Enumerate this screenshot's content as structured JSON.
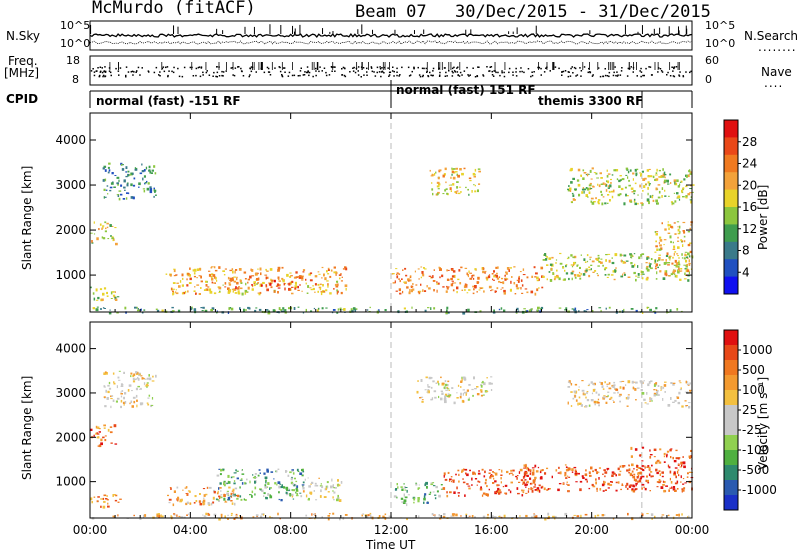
{
  "header": {
    "station": "McMurdo (fitACF)",
    "beam": "Beam 07",
    "date_range": "30/Dec/2015 - 31/Dec/2015"
  },
  "strips": {
    "nsky_label": "N.Sky",
    "nsky_ticks": [
      "10^5",
      "10^0"
    ],
    "nsearch_label": "N.Search",
    "nsearch_legend": "........",
    "nsearch_ticks": [
      "10^5",
      "10^0"
    ],
    "freq_label": "Freq.",
    "freq_unit": "[MHz]",
    "freq_ticks": [
      "18",
      "8"
    ],
    "nave_label": "Nave",
    "nave_legend": "....",
    "nave_ticks": [
      "60",
      "0"
    ]
  },
  "cpid": {
    "label": "CPID",
    "segments": [
      {
        "text": "normal (fast) -151 RF",
        "start": 0,
        "end": 12
      },
      {
        "text": "normal (fast) 151 RF",
        "start": 12,
        "end": 22
      },
      {
        "text": "themis 3300 RF",
        "start": 22,
        "end": 24
      }
    ]
  },
  "chart_data": [
    {
      "type": "heatmap",
      "panel": "power",
      "ylabel": "Slant Range [km]",
      "yticks": [
        "1000",
        "2000",
        "3000",
        "4000"
      ],
      "xticks": [
        "00:00",
        "04:00",
        "08:00",
        "12:00",
        "16:00",
        "20:00",
        "00:00"
      ],
      "xlabel": "Time UT",
      "x_range_hours": [
        0,
        24
      ],
      "y_range_km": [
        180,
        4600
      ],
      "colorbar_label": "Power [dB]",
      "colorbar_ticks": [
        "4",
        "8",
        "12",
        "16",
        "20",
        "24",
        "28"
      ],
      "colorbar_colors": [
        "#1010f0",
        "#2050c0",
        "#3a7a8a",
        "#3f9d4e",
        "#8cc63e",
        "#e8d32a",
        "#f3a23a",
        "#f07a20",
        "#ea4818",
        "#e01010"
      ],
      "backscatter_bands": [
        {
          "t0": 0.0,
          "t1": 24.0,
          "r0": 180,
          "r1": 300,
          "level": 0.35
        },
        {
          "t0": 0.0,
          "t1": 1.0,
          "r0": 1700,
          "r1": 2200,
          "level": 0.55
        },
        {
          "t0": 0.0,
          "t1": 1.2,
          "r0": 450,
          "r1": 750,
          "level": 0.5
        },
        {
          "t0": 0.5,
          "t1": 2.6,
          "r0": 2700,
          "r1": 3500,
          "level": 0.3
        },
        {
          "t0": 3.0,
          "t1": 10.2,
          "r0": 600,
          "r1": 1200,
          "level": 0.65
        },
        {
          "t0": 5.5,
          "t1": 8.5,
          "r0": 700,
          "r1": 1000,
          "level": 0.8
        },
        {
          "t0": 12.0,
          "t1": 18.0,
          "r0": 600,
          "r1": 1200,
          "level": 0.72
        },
        {
          "t0": 13.5,
          "t1": 15.5,
          "r0": 2800,
          "r1": 3400,
          "level": 0.55
        },
        {
          "t0": 18.0,
          "t1": 24.0,
          "r0": 900,
          "r1": 1500,
          "level": 0.5
        },
        {
          "t0": 19.0,
          "t1": 24.0,
          "r0": 2600,
          "r1": 3400,
          "level": 0.5
        },
        {
          "t0": 22.5,
          "t1": 24.0,
          "r0": 1000,
          "r1": 2200,
          "level": 0.6
        }
      ]
    },
    {
      "type": "heatmap",
      "panel": "velocity",
      "ylabel": "Slant Range [km]",
      "yticks": [
        "1000",
        "2000",
        "3000",
        "4000"
      ],
      "xticks": [
        "00:00",
        "04:00",
        "08:00",
        "12:00",
        "16:00",
        "20:00",
        "00:00"
      ],
      "xlabel": "Time UT",
      "x_range_hours": [
        0,
        24
      ],
      "y_range_km": [
        180,
        4600
      ],
      "colorbar_label": "Velocity [m s⁻¹]",
      "colorbar_ticks": [
        "1000",
        "500",
        "100",
        "25",
        "-25",
        "-100",
        "-500",
        "-1000"
      ],
      "colorbar_colors": [
        "#1a30c8",
        "#2a5ab0",
        "#2e8a6e",
        "#4fb040",
        "#90d050",
        "#c8c8c8",
        "#c8c8c8",
        "#f3c040",
        "#f39a30",
        "#f07820",
        "#e84818",
        "#e01010"
      ],
      "backscatter_bands": [
        {
          "t0": 0.0,
          "t1": 24.0,
          "r0": 180,
          "r1": 300,
          "level": 0.65
        },
        {
          "t0": 0.0,
          "t1": 1.0,
          "r0": 1800,
          "r1": 2300,
          "level": 0.8
        },
        {
          "t0": 0.0,
          "t1": 1.2,
          "r0": 450,
          "r1": 750,
          "level": 0.72
        },
        {
          "t0": 0.5,
          "t1": 2.6,
          "r0": 2700,
          "r1": 3500,
          "level": 0.55
        },
        {
          "t0": 3.0,
          "t1": 6.0,
          "r0": 500,
          "r1": 900,
          "level": 0.7
        },
        {
          "t0": 5.0,
          "t1": 8.5,
          "r0": 600,
          "r1": 1300,
          "level": 0.3
        },
        {
          "t0": 8.0,
          "t1": 10.0,
          "r0": 600,
          "r1": 1100,
          "level": 0.5
        },
        {
          "t0": 12.0,
          "t1": 14.0,
          "r0": 500,
          "r1": 1000,
          "level": 0.32
        },
        {
          "t0": 14.0,
          "t1": 18.0,
          "r0": 700,
          "r1": 1300,
          "level": 0.85
        },
        {
          "t0": 13.0,
          "t1": 16.0,
          "r0": 2800,
          "r1": 3400,
          "level": 0.55
        },
        {
          "t0": 17.0,
          "t1": 22.0,
          "r0": 800,
          "r1": 1400,
          "level": 0.85
        },
        {
          "t0": 19.0,
          "t1": 24.0,
          "r0": 2700,
          "r1": 3300,
          "level": 0.58
        },
        {
          "t0": 21.5,
          "t1": 24.0,
          "r0": 800,
          "r1": 1800,
          "level": 0.85
        }
      ]
    }
  ]
}
